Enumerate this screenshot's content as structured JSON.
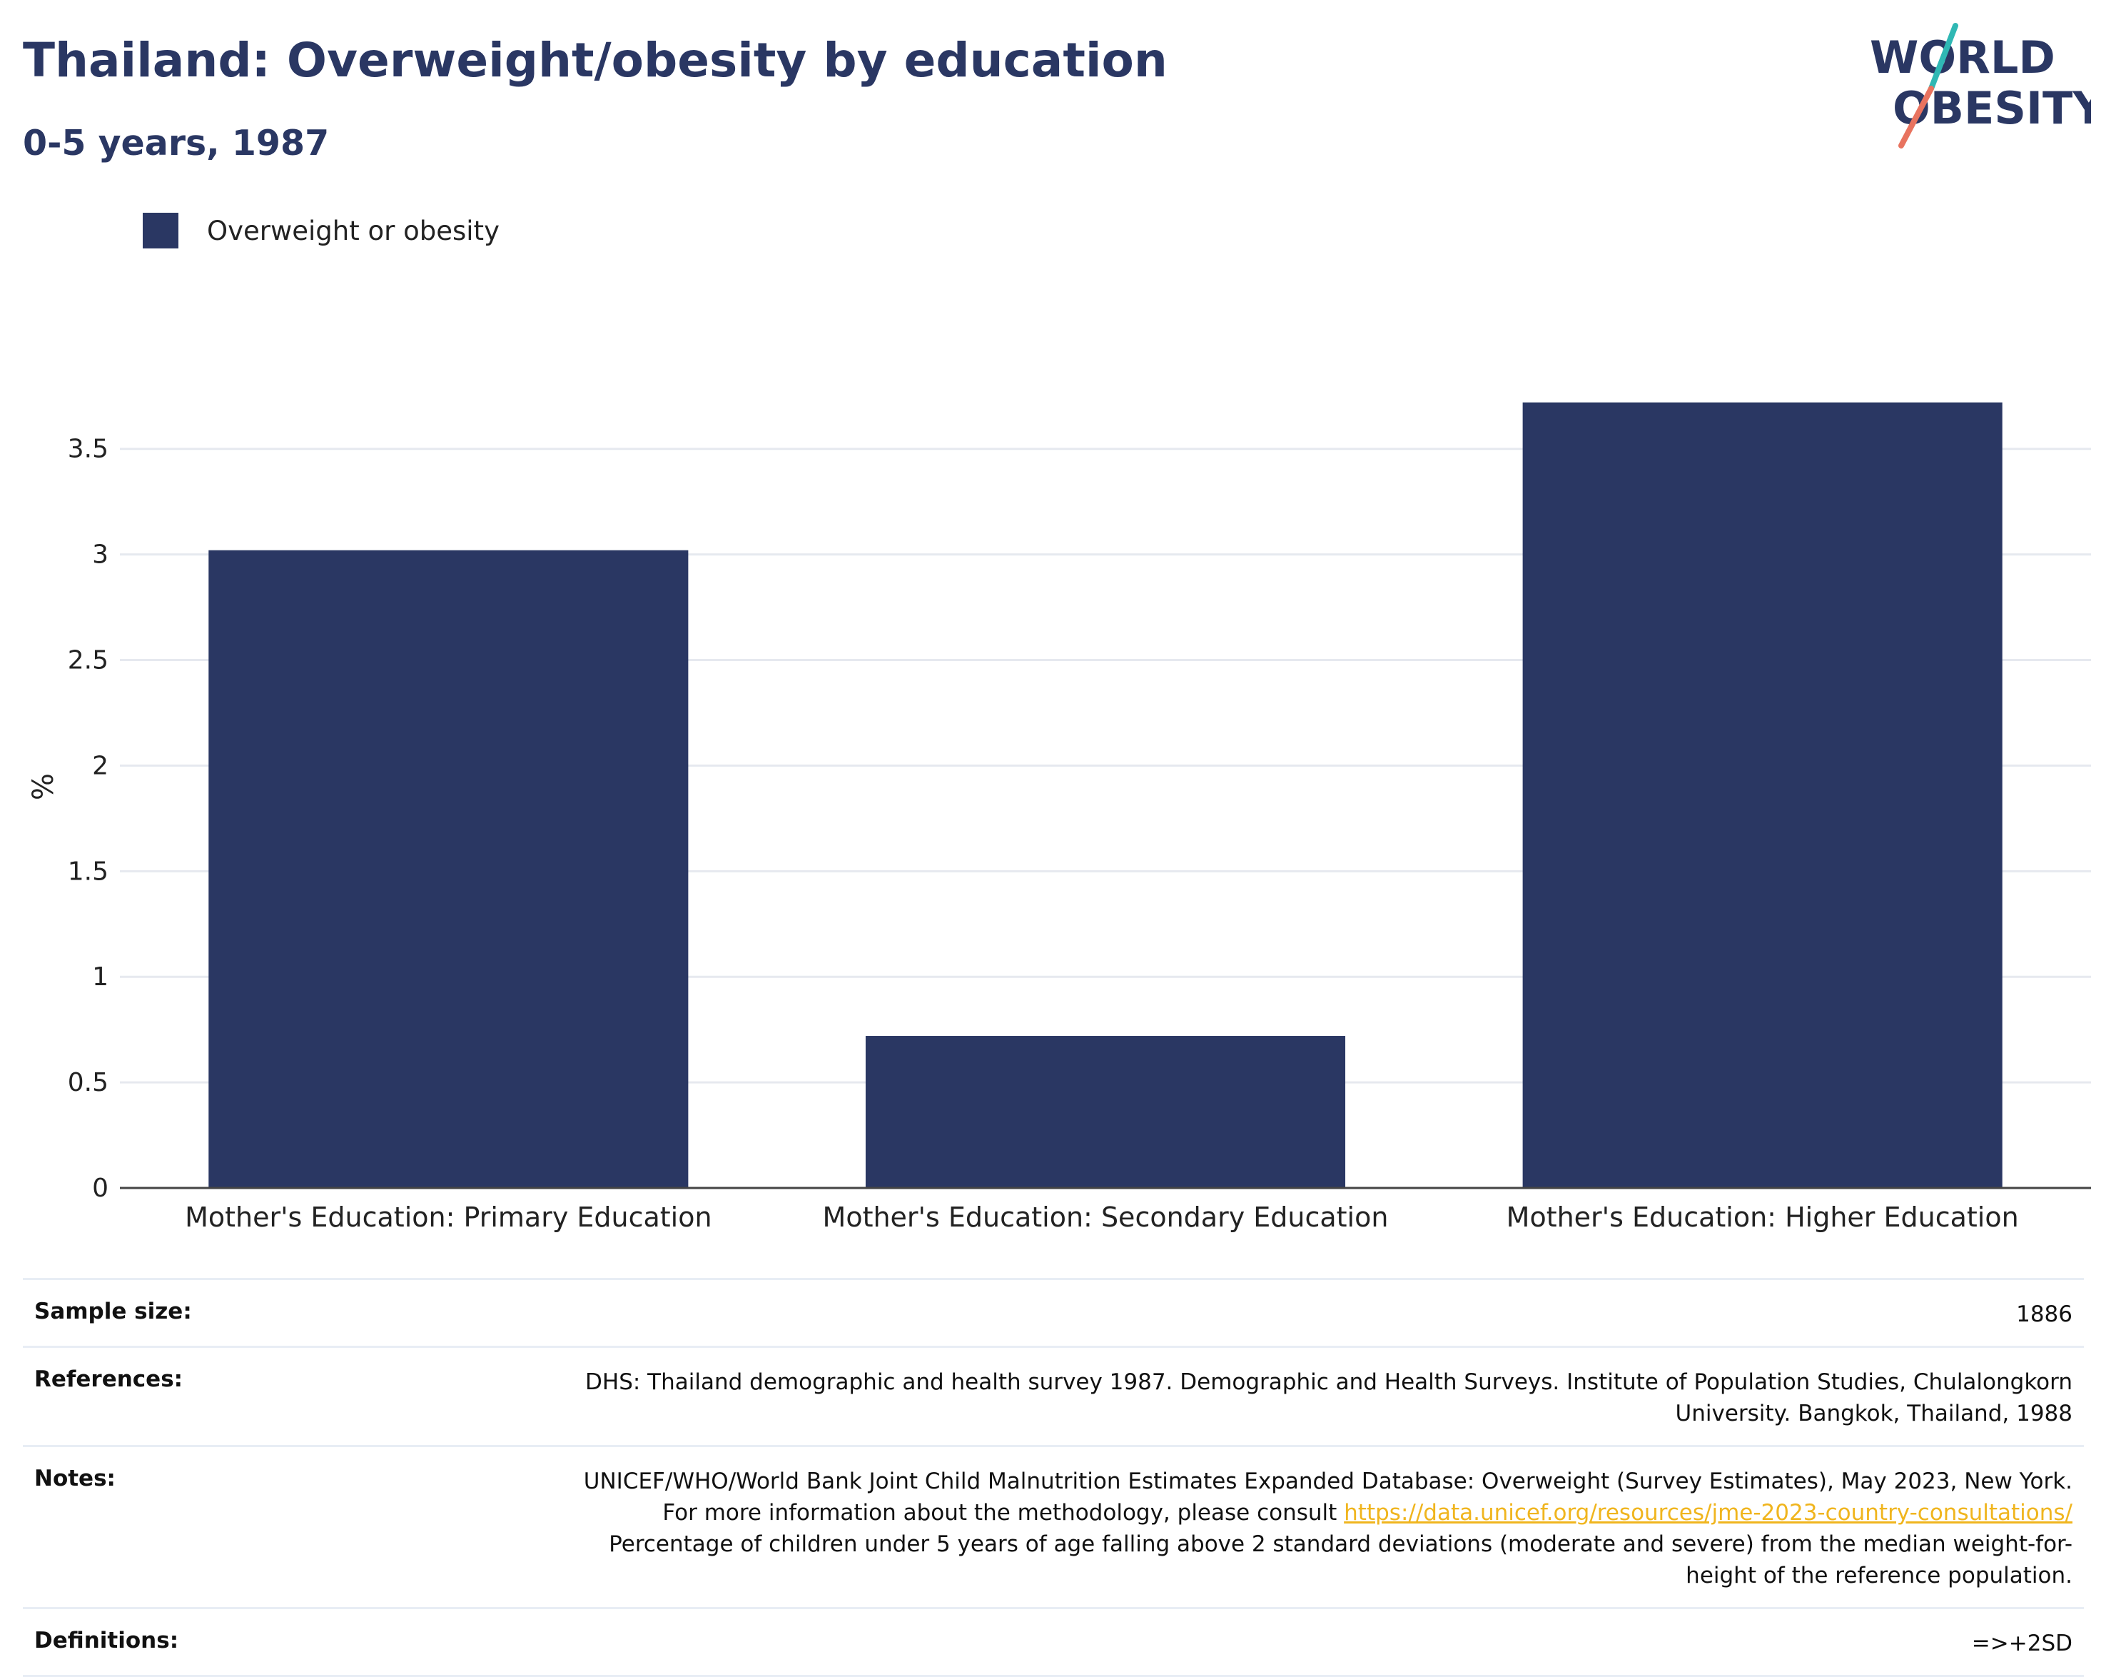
{
  "header": {
    "title": "Thailand: Overweight/obesity by education",
    "subtitle": "0-5 years, 1987"
  },
  "logo": {
    "line1": "WORLD",
    "line2": "OBESITY",
    "colors": {
      "text": "#2a3763",
      "slash_top": "#2fb8b4",
      "slash_bottom": "#e8735f"
    }
  },
  "legend": {
    "label": "Overweight or obesity",
    "color": "#2a3763"
  },
  "chart_data": {
    "type": "bar",
    "categories": [
      "Mother's Education: Primary Education",
      "Mother's Education: Secondary Education",
      "Mother's Education: Higher Education"
    ],
    "series": [
      {
        "name": "Overweight or obesity",
        "values": [
          3.02,
          0.72,
          3.72
        ],
        "color": "#2a3763"
      }
    ],
    "ylabel": "%",
    "xlabel": "",
    "ylim": [
      0,
      3.8
    ],
    "yticks": [
      0,
      0.5,
      1,
      1.5,
      2,
      2.5,
      3,
      3.5
    ],
    "ytick_labels": [
      "0",
      "0.5",
      "1",
      "1.5",
      "2",
      "2.5",
      "3",
      "3.5"
    ],
    "grid": true,
    "legend_position": "top-left"
  },
  "info": {
    "sample_size": {
      "label": "Sample size:",
      "value": "1886"
    },
    "references": {
      "label": "References:",
      "value": "DHS: Thailand demographic and health survey 1987. Demographic and Health Surveys. Institute of Population Studies, Chulalongkorn University. Bangkok, Thailand, 1988"
    },
    "notes": {
      "label": "Notes:",
      "text_before_link": "UNICEF/WHO/World Bank Joint Child Malnutrition Estimates Expanded Database: Overweight (Survey Estimates), May 2023, New York. For more information about the methodology, please consult ",
      "link": "https://data.unicef.org/resources/jme-2023-country-consultations/",
      "text_after_link": " Percentage of children under 5 years of age falling above 2 standard deviations (moderate and severe) from the median weight-for-height of the reference population."
    },
    "definitions": {
      "label": "Definitions:",
      "value": "=>+2SD"
    }
  }
}
